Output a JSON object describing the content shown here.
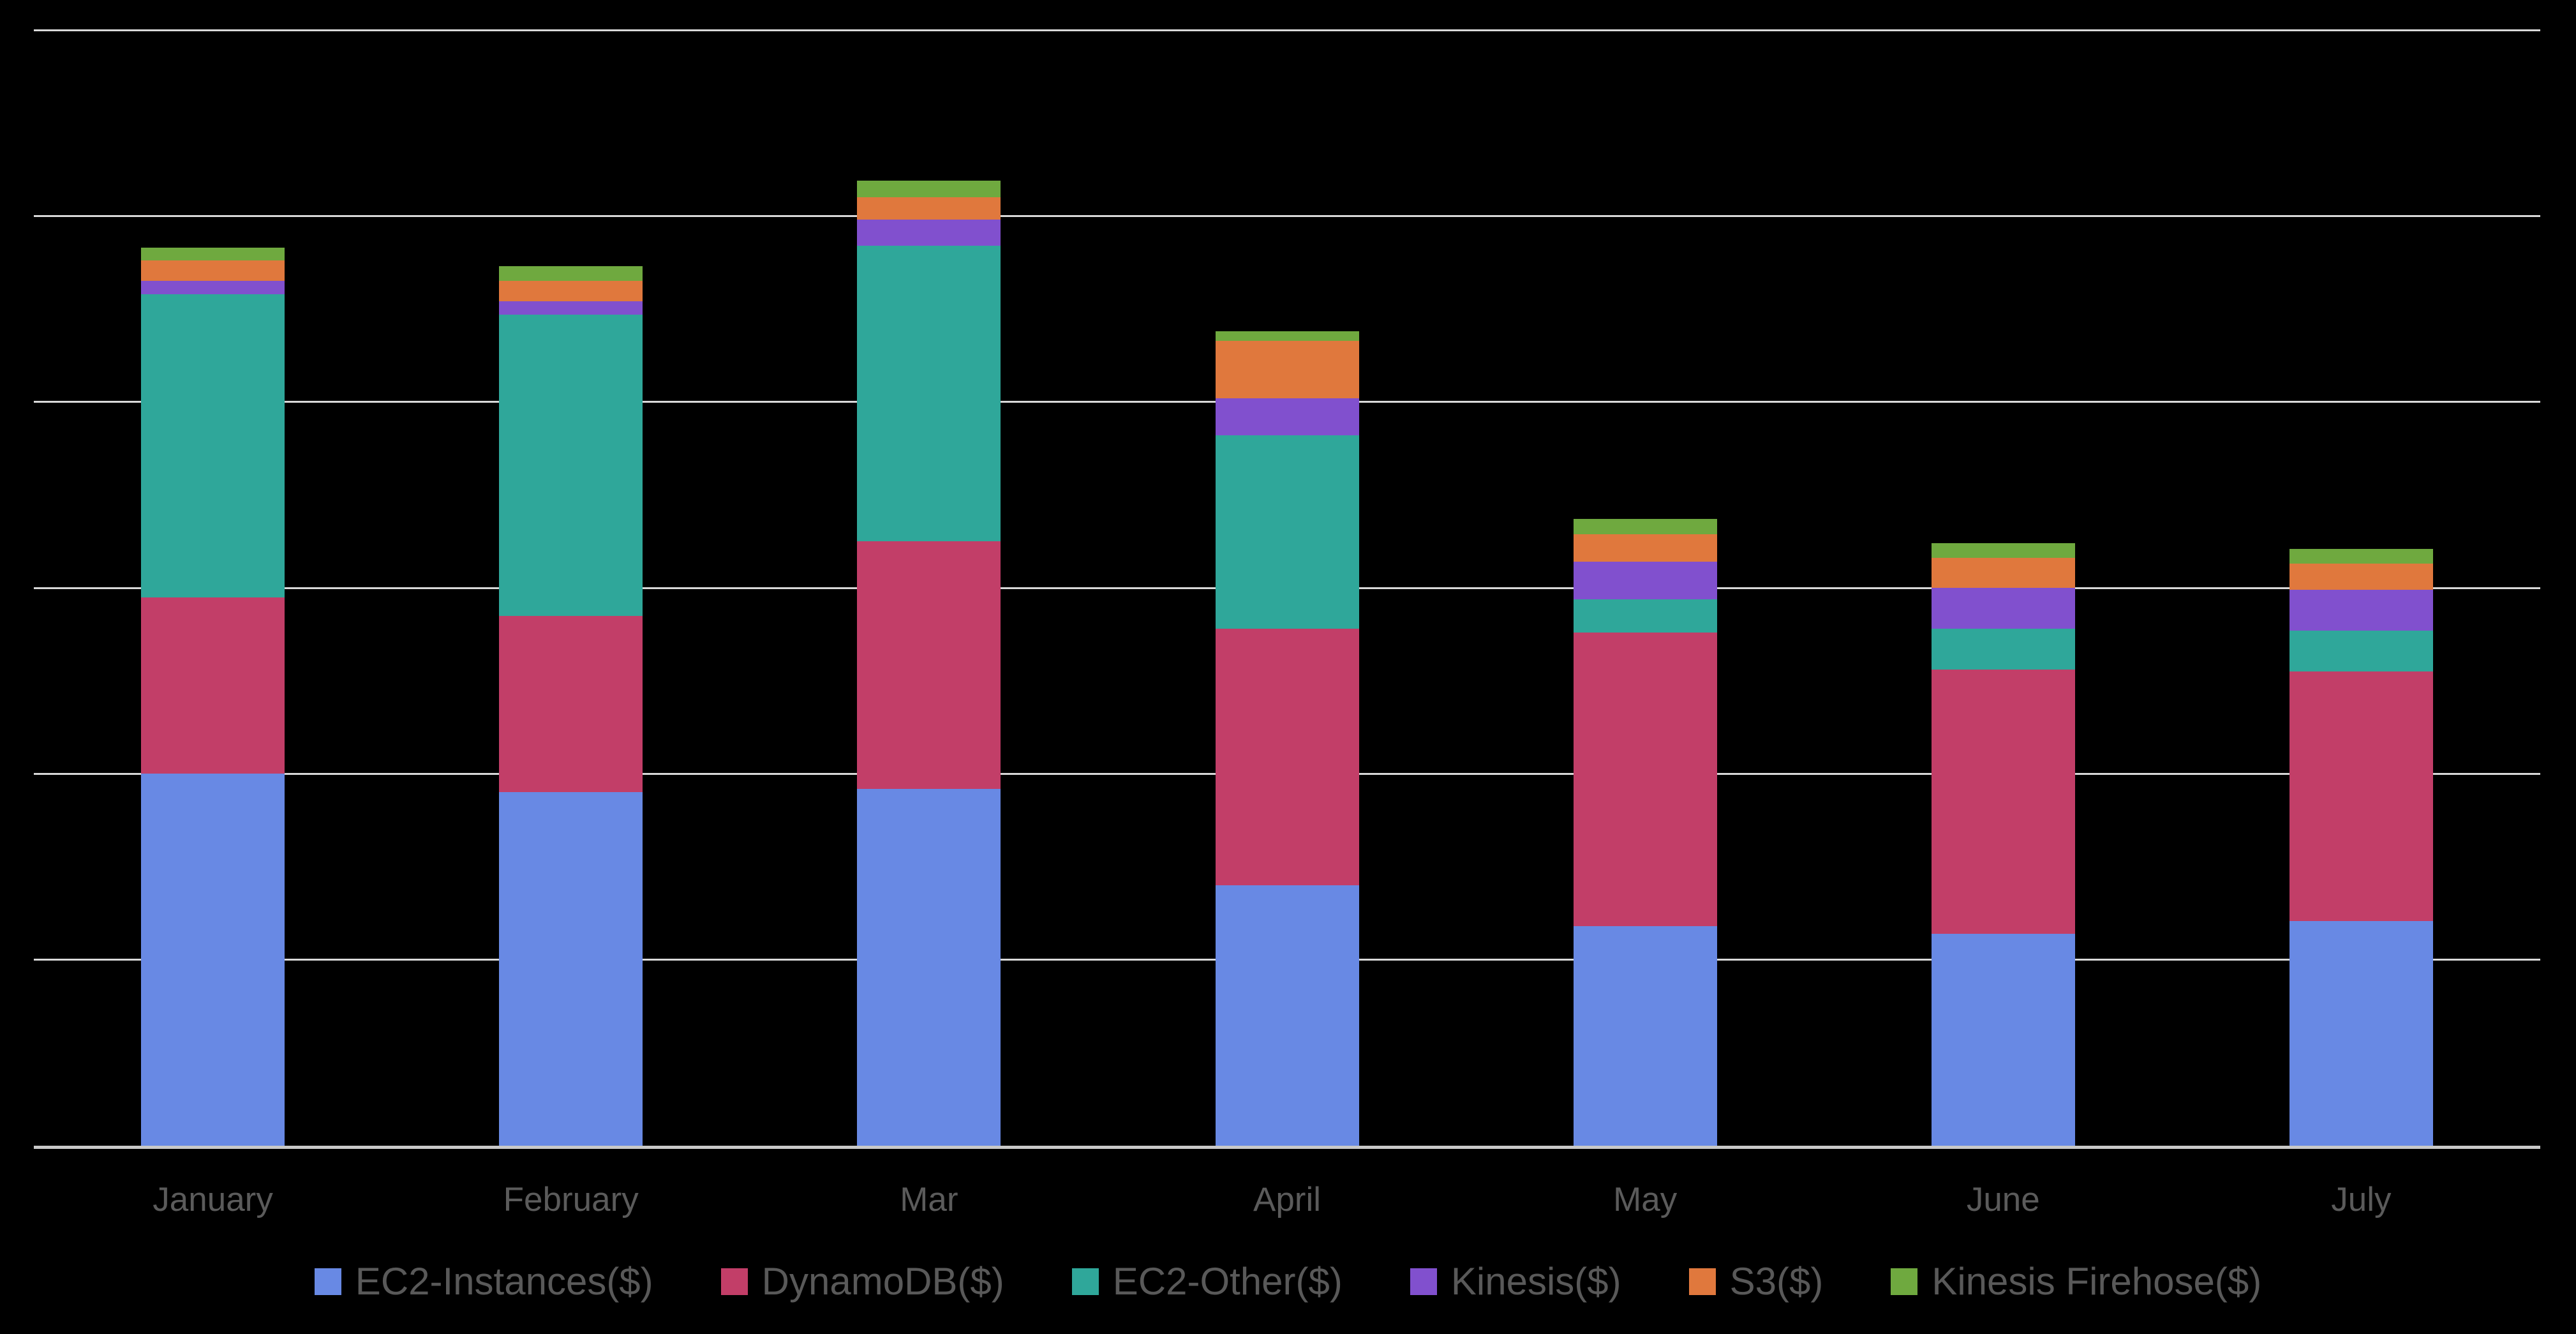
{
  "chart_data": {
    "type": "bar",
    "stacked": true,
    "title": "",
    "xlabel": "",
    "ylabel": "",
    "categories": [
      "January",
      "February",
      "Mar",
      "April",
      "May",
      "June",
      "July"
    ],
    "series": [
      {
        "name": "EC2-Instances($)",
        "color": "#6889E4",
        "values": [
          2.0,
          1.9,
          1.92,
          1.4,
          1.18,
          1.14,
          1.21
        ]
      },
      {
        "name": "DynamoDB($)",
        "color": "#C23E68",
        "values": [
          0.95,
          0.95,
          1.33,
          1.38,
          1.58,
          1.42,
          1.34
        ]
      },
      {
        "name": "EC2-Other($)",
        "color": "#2FA79A",
        "values": [
          1.63,
          1.62,
          1.59,
          1.04,
          0.18,
          0.22,
          0.22
        ]
      },
      {
        "name": "Kinesis($)",
        "color": "#8150CE",
        "values": [
          0.07,
          0.07,
          0.14,
          0.2,
          0.2,
          0.22,
          0.22
        ]
      },
      {
        "name": "S3($)",
        "color": "#E0783D",
        "values": [
          0.11,
          0.11,
          0.12,
          0.31,
          0.15,
          0.16,
          0.14
        ]
      },
      {
        "name": "Kinesis Firehose($)",
        "color": "#6FA93F",
        "values": [
          0.07,
          0.08,
          0.09,
          0.05,
          0.08,
          0.08,
          0.08
        ]
      }
    ],
    "y_axis": {
      "tick_labels_visible": false,
      "ylim": [
        0,
        6
      ],
      "gridline_step": 1,
      "gridline_count": 7,
      "note": "y-axis has no tick labels in the image; values estimated in gridline units (1 unit = one gridline spacing)"
    },
    "legend_position": "bottom",
    "grid": true,
    "colors_ui": {
      "background": "#000000",
      "gridline": "#D9D9D9",
      "axis_line": "#C8C8C8",
      "x_label_text": "#5B5B5B",
      "legend_text": "#595959"
    }
  }
}
